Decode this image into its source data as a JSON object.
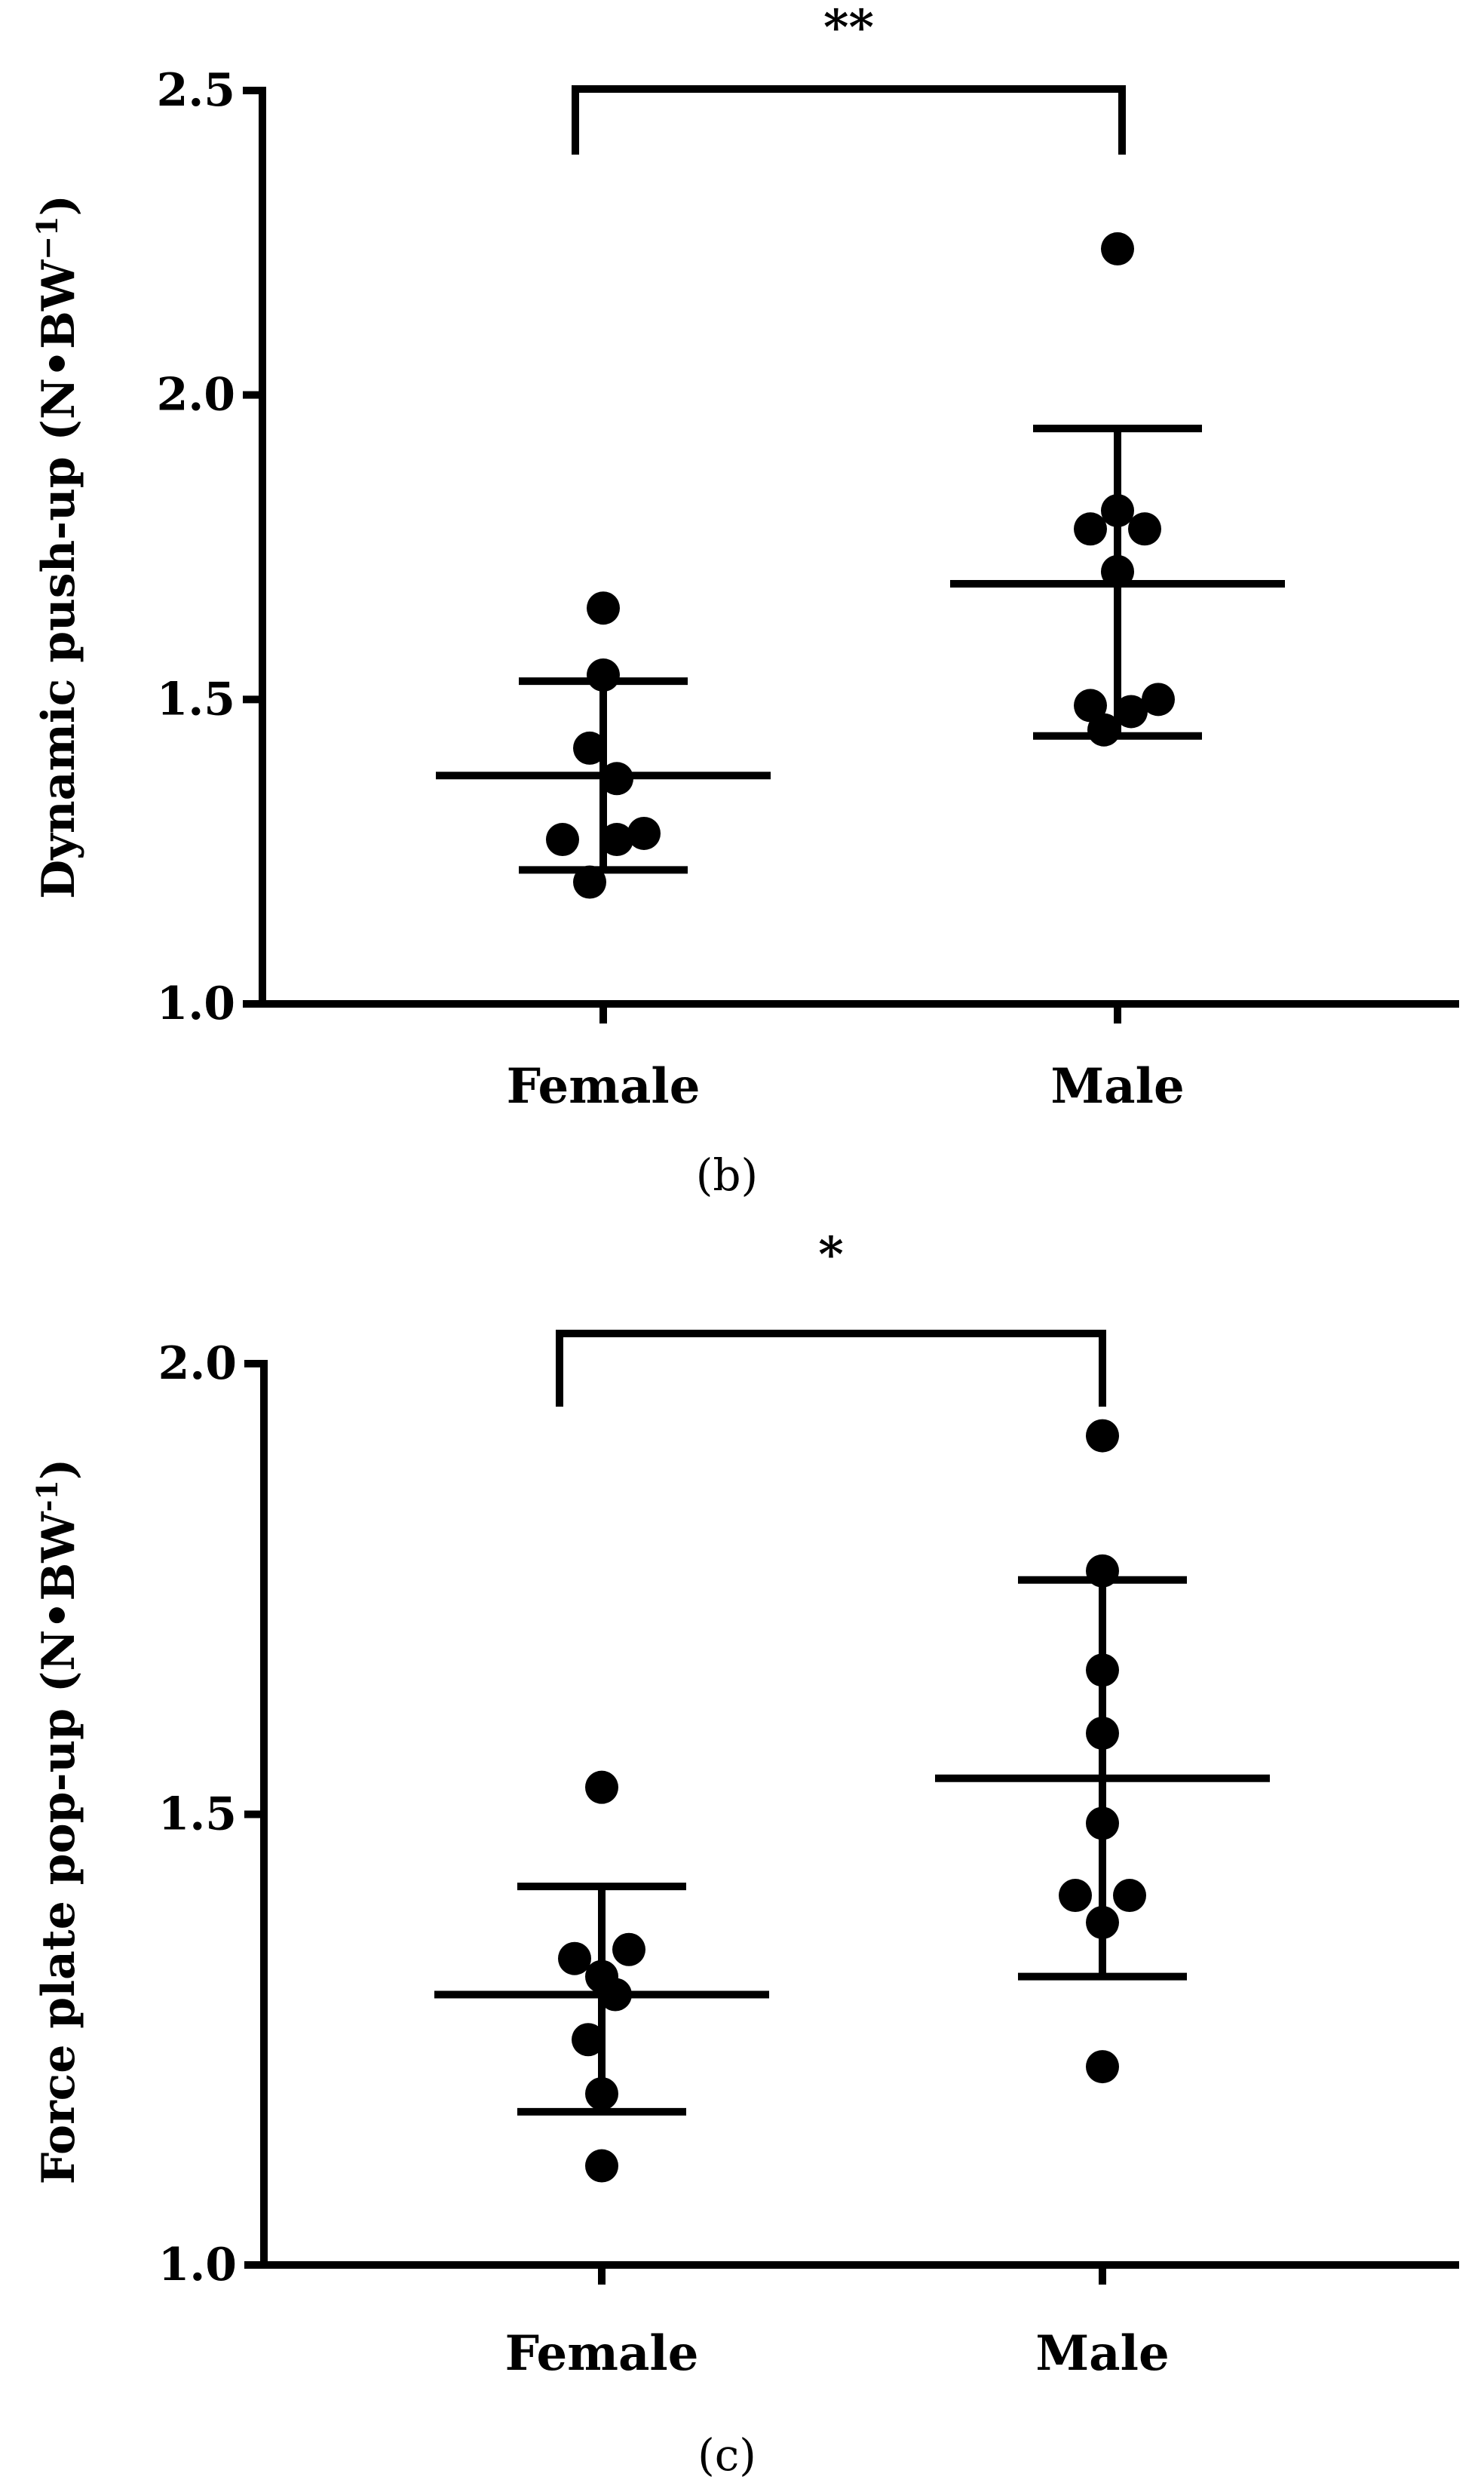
{
  "colors": {
    "ink": "#000000",
    "background": "#ffffff"
  },
  "chart_data": [
    {
      "type": "scatter",
      "panel_label": "(b)",
      "ylabel_main": "Dynamic push-up (N•BW",
      "ylabel_sup": "−1",
      "ylabel_close": ")",
      "categories": [
        "Female",
        "Male"
      ],
      "ylim": [
        1.0,
        2.5
      ],
      "yticks": [
        {
          "value": 1.0,
          "label": "1.0"
        },
        {
          "value": 1.5,
          "label": "1.5"
        },
        {
          "value": 2.0,
          "label": "2.0"
        },
        {
          "value": 2.5,
          "label": "2.5"
        }
      ],
      "significance": "**",
      "series": [
        {
          "name": "Female",
          "mean": 1.375,
          "sd_upper": 1.53,
          "sd_lower": 1.22,
          "points": [
            {
              "offset": 0.0,
              "value": 1.65
            },
            {
              "offset": 0.0,
              "value": 1.54
            },
            {
              "offset": -0.045,
              "value": 1.42
            },
            {
              "offset": 0.045,
              "value": 1.37
            },
            {
              "offset": -0.135,
              "value": 1.27
            },
            {
              "offset": 0.045,
              "value": 1.27
            },
            {
              "offset": 0.135,
              "value": 1.28
            },
            {
              "offset": -0.045,
              "value": 1.2
            }
          ]
        },
        {
          "name": "Male",
          "mean": 1.69,
          "sd_upper": 1.945,
          "sd_lower": 1.44,
          "points": [
            {
              "offset": 0.0,
              "value": 2.24
            },
            {
              "offset": 0.0,
              "value": 1.81
            },
            {
              "offset": -0.09,
              "value": 1.78
            },
            {
              "offset": 0.09,
              "value": 1.78
            },
            {
              "offset": 0.0,
              "value": 1.71
            },
            {
              "offset": -0.09,
              "value": 1.49
            },
            {
              "offset": 0.045,
              "value": 1.48
            },
            {
              "offset": 0.135,
              "value": 1.5
            },
            {
              "offset": -0.045,
              "value": 1.45
            }
          ]
        }
      ]
    },
    {
      "type": "scatter",
      "panel_label": "(c)",
      "ylabel_main": "Force plate pop-up (N•BW",
      "ylabel_sup": "-1",
      "ylabel_close": ")",
      "categories": [
        "Female",
        "Male"
      ],
      "ylim": [
        1.0,
        2.0
      ],
      "yticks": [
        {
          "value": 1.0,
          "label": "1.0"
        },
        {
          "value": 1.5,
          "label": "1.5"
        },
        {
          "value": 2.0,
          "label": "2.0"
        }
      ],
      "significance": "*",
      "series": [
        {
          "name": "Female",
          "mean": 1.3,
          "sd_upper": 1.42,
          "sd_lower": 1.17,
          "points": [
            {
              "offset": 0.0,
              "value": 1.53
            },
            {
              "offset": -0.09,
              "value": 1.34
            },
            {
              "offset": 0.09,
              "value": 1.35
            },
            {
              "offset": 0.0,
              "value": 1.32
            },
            {
              "offset": 0.045,
              "value": 1.3
            },
            {
              "offset": -0.045,
              "value": 1.25
            },
            {
              "offset": 0.0,
              "value": 1.19
            },
            {
              "offset": 0.0,
              "value": 1.11
            }
          ]
        },
        {
          "name": "Male",
          "mean": 1.54,
          "sd_upper": 1.76,
          "sd_lower": 1.32,
          "points": [
            {
              "offset": 0.0,
              "value": 1.92
            },
            {
              "offset": 0.0,
              "value": 1.77
            },
            {
              "offset": 0.0,
              "value": 1.66
            },
            {
              "offset": 0.0,
              "value": 1.59
            },
            {
              "offset": 0.0,
              "value": 1.49
            },
            {
              "offset": -0.09,
              "value": 1.41
            },
            {
              "offset": 0.09,
              "value": 1.41
            },
            {
              "offset": 0.0,
              "value": 1.38
            },
            {
              "offset": 0.0,
              "value": 1.22
            }
          ]
        }
      ]
    }
  ]
}
